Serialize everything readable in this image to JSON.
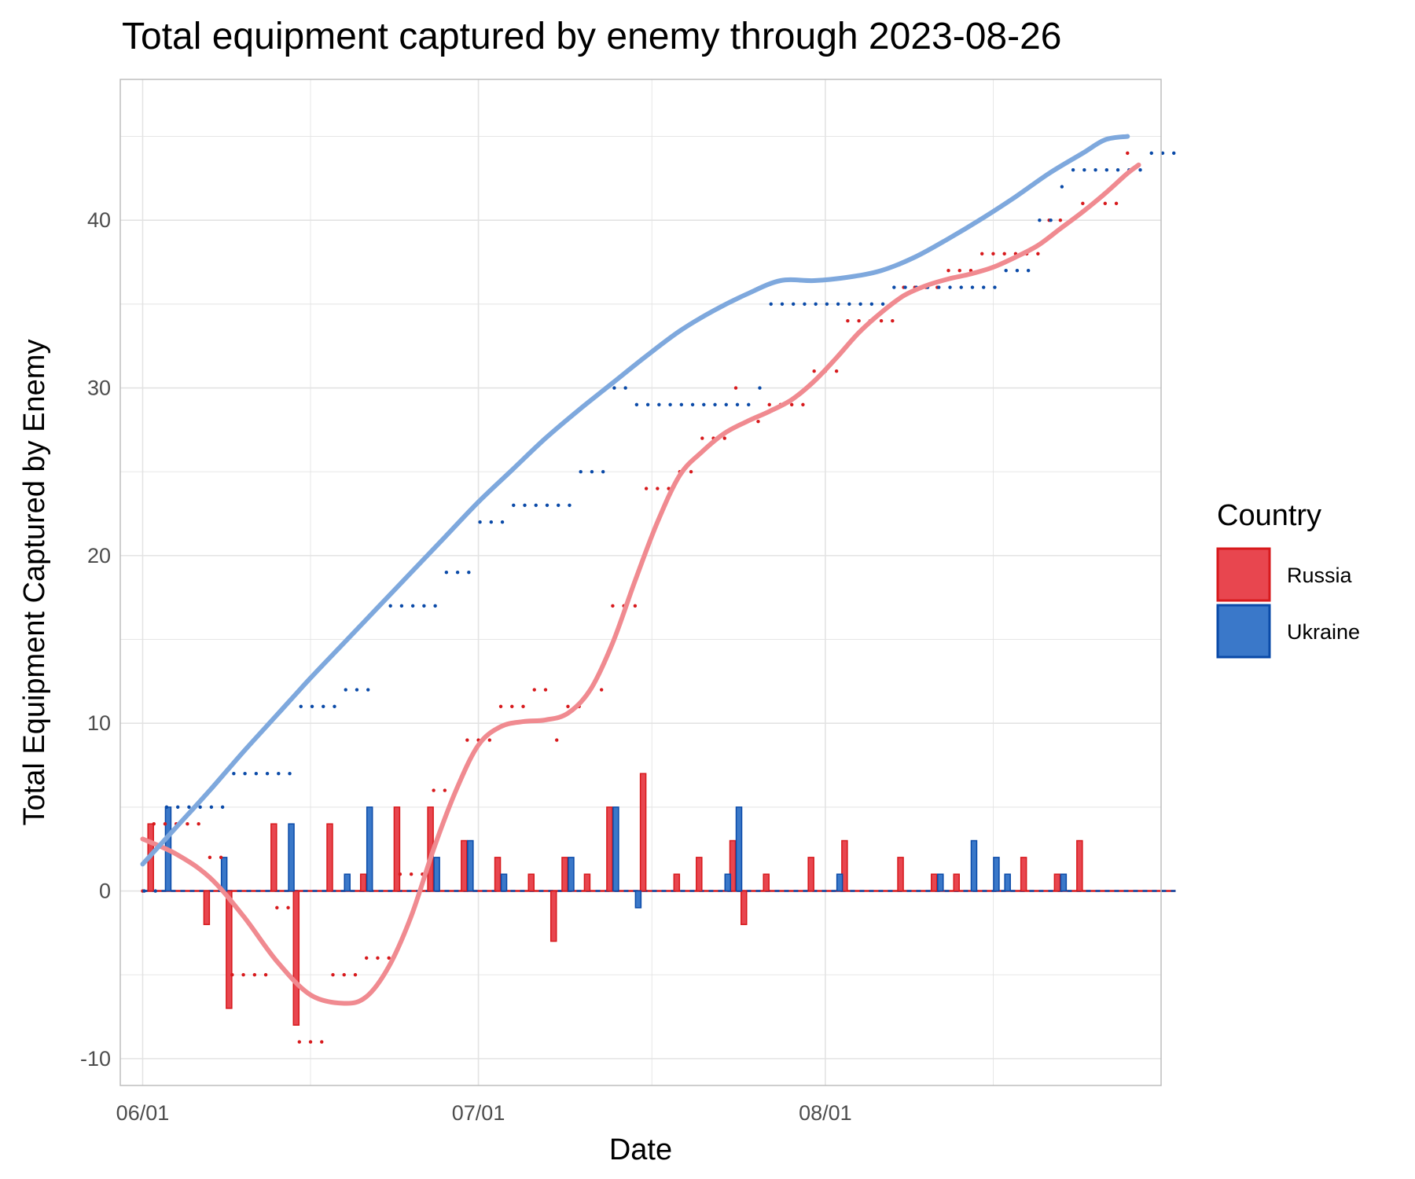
{
  "chart_data": {
    "type": "bar+line",
    "title": "Total equipment captured by enemy through 2023-08-26",
    "xlabel": "Date",
    "ylabel": "Total Equipment Captured by Enemy",
    "x_range": [
      "2023-05-30",
      "2023-08-31"
    ],
    "ylim": [
      -11.6,
      48.4
    ],
    "y_ticks": [
      -10,
      0,
      10,
      20,
      30,
      40
    ],
    "x_ticks": [
      {
        "date": "2023-06-01",
        "label": "06/01"
      },
      {
        "date": "2023-07-01",
        "label": "07/01"
      },
      {
        "date": "2023-08-01",
        "label": "08/01"
      }
    ],
    "grid": true,
    "legend": {
      "title": "Country",
      "position": "right"
    },
    "colors": {
      "Russia": "#e8464f",
      "Ukraine": "#3a78c9",
      "Russia_edge": "#d7191c",
      "Ukraine_edge": "#0a4aa8",
      "Russia_smooth": "#f08a90",
      "Ukraine_smooth": "#7ea8dd"
    },
    "series": [
      {
        "name": "Russia",
        "daily": [
          {
            "date": "2023-06-02",
            "value": 4
          },
          {
            "date": "2023-06-07",
            "value": -2
          },
          {
            "date": "2023-06-09",
            "value": -7
          },
          {
            "date": "2023-06-13",
            "value": 4
          },
          {
            "date": "2023-06-15",
            "value": -8
          },
          {
            "date": "2023-06-18",
            "value": 4
          },
          {
            "date": "2023-06-21",
            "value": 1
          },
          {
            "date": "2023-06-24",
            "value": 5
          },
          {
            "date": "2023-06-27",
            "value": 5
          },
          {
            "date": "2023-06-30",
            "value": 3
          },
          {
            "date": "2023-07-03",
            "value": 2
          },
          {
            "date": "2023-07-06",
            "value": 1
          },
          {
            "date": "2023-07-08",
            "value": -3
          },
          {
            "date": "2023-07-09",
            "value": 2
          },
          {
            "date": "2023-07-11",
            "value": 1
          },
          {
            "date": "2023-07-13",
            "value": 5
          },
          {
            "date": "2023-07-16",
            "value": 7
          },
          {
            "date": "2023-07-19",
            "value": 1
          },
          {
            "date": "2023-07-21",
            "value": 2
          },
          {
            "date": "2023-07-24",
            "value": 3
          },
          {
            "date": "2023-07-25",
            "value": -2
          },
          {
            "date": "2023-07-27",
            "value": 1
          },
          {
            "date": "2023-07-31",
            "value": 2
          },
          {
            "date": "2023-08-03",
            "value": 3
          },
          {
            "date": "2023-08-08",
            "value": 2
          },
          {
            "date": "2023-08-11",
            "value": 1
          },
          {
            "date": "2023-08-13",
            "value": 1
          },
          {
            "date": "2023-08-19",
            "value": 2
          },
          {
            "date": "2023-08-22",
            "value": 1
          },
          {
            "date": "2023-08-24",
            "value": 3
          }
        ],
        "cumulative": [
          0,
          4,
          4,
          4,
          4,
          4,
          2,
          2,
          -5,
          -5,
          -5,
          -5,
          -1,
          -1,
          -9,
          -9,
          -9,
          -5,
          -5,
          -5,
          -4,
          -4,
          -4,
          1,
          1,
          1,
          6,
          6,
          6,
          9,
          9,
          9,
          11,
          11,
          11,
          12,
          12,
          9,
          11,
          11,
          12,
          12,
          17,
          17,
          17,
          24,
          24,
          24,
          25,
          25,
          27,
          27,
          27,
          30,
          28,
          28,
          29,
          29,
          29,
          29,
          31,
          31,
          31,
          34,
          34,
          34,
          34,
          34,
          36,
          36,
          36,
          36,
          37,
          37,
          37,
          38,
          38,
          38,
          38,
          38,
          38,
          40,
          40,
          40,
          41,
          41,
          41,
          41,
          44
        ],
        "smooth": [
          [
            0,
            3.1
          ],
          [
            3,
            2.2
          ],
          [
            6,
            0.8
          ],
          [
            9,
            -1.5
          ],
          [
            12,
            -4.2
          ],
          [
            15,
            -6.2
          ],
          [
            18,
            -6.7
          ],
          [
            20,
            -6.3
          ],
          [
            22,
            -4.5
          ],
          [
            24,
            -1.5
          ],
          [
            26,
            2.5
          ],
          [
            28,
            6
          ],
          [
            30,
            8.7
          ],
          [
            32,
            9.8
          ],
          [
            34,
            10.1
          ],
          [
            36,
            10.2
          ],
          [
            38,
            10.6
          ],
          [
            40,
            12
          ],
          [
            42,
            14.8
          ],
          [
            44,
            18.5
          ],
          [
            46,
            22
          ],
          [
            48,
            24.8
          ],
          [
            50,
            26.2
          ],
          [
            52,
            27.3
          ],
          [
            54,
            28
          ],
          [
            56,
            28.6
          ],
          [
            58,
            29.3
          ],
          [
            60,
            30.4
          ],
          [
            62,
            31.8
          ],
          [
            64,
            33.3
          ],
          [
            66,
            34.5
          ],
          [
            68,
            35.5
          ],
          [
            70,
            36.1
          ],
          [
            72,
            36.5
          ],
          [
            74,
            36.8
          ],
          [
            76,
            37.2
          ],
          [
            78,
            37.8
          ],
          [
            80,
            38.5
          ],
          [
            82,
            39.5
          ],
          [
            84,
            40.5
          ],
          [
            86,
            41.6
          ],
          [
            88,
            42.8
          ],
          [
            89,
            43.3
          ]
        ]
      },
      {
        "name": "Ukraine",
        "daily": [
          {
            "date": "2023-06-03",
            "value": 5
          },
          {
            "date": "2023-06-08",
            "value": 2
          },
          {
            "date": "2023-06-14",
            "value": 4
          },
          {
            "date": "2023-06-19",
            "value": 1
          },
          {
            "date": "2023-06-21",
            "value": 5
          },
          {
            "date": "2023-06-27",
            "value": 2
          },
          {
            "date": "2023-06-30",
            "value": 3
          },
          {
            "date": "2023-07-03",
            "value": 1
          },
          {
            "date": "2023-07-09",
            "value": 2
          },
          {
            "date": "2023-07-13",
            "value": 5
          },
          {
            "date": "2023-07-15",
            "value": -1
          },
          {
            "date": "2023-07-23",
            "value": 1
          },
          {
            "date": "2023-07-24",
            "value": 5
          },
          {
            "date": "2023-08-02",
            "value": 1
          },
          {
            "date": "2023-08-11",
            "value": 1
          },
          {
            "date": "2023-08-14",
            "value": 3
          },
          {
            "date": "2023-08-16",
            "value": 2
          },
          {
            "date": "2023-08-17",
            "value": 1
          },
          {
            "date": "2023-08-22",
            "value": 1
          }
        ],
        "cumulative": [
          0,
          0,
          5,
          5,
          5,
          5,
          5,
          5,
          7,
          7,
          7,
          7,
          7,
          7,
          11,
          11,
          11,
          11,
          12,
          12,
          12,
          17,
          17,
          17,
          17,
          17,
          17,
          19,
          19,
          19,
          22,
          22,
          22,
          23,
          23,
          23,
          23,
          23,
          23,
          25,
          25,
          25,
          30,
          30,
          29,
          29,
          29,
          29,
          29,
          29,
          29,
          29,
          29,
          29,
          29,
          30,
          35,
          35,
          35,
          35,
          35,
          35,
          35,
          35,
          35,
          35,
          35,
          36,
          36,
          36,
          36,
          36,
          36,
          36,
          36,
          36,
          36,
          37,
          37,
          37,
          40,
          40,
          42,
          43,
          43,
          43,
          43,
          43,
          43,
          43,
          44,
          44,
          44
        ],
        "smooth": [
          [
            0,
            1.6
          ],
          [
            3,
            3.8
          ],
          [
            6,
            6
          ],
          [
            9,
            8.3
          ],
          [
            12,
            10.5
          ],
          [
            15,
            12.7
          ],
          [
            18,
            14.8
          ],
          [
            21,
            16.9
          ],
          [
            24,
            19
          ],
          [
            27,
            21.1
          ],
          [
            30,
            23.2
          ],
          [
            33,
            25.1
          ],
          [
            36,
            27
          ],
          [
            39,
            28.7
          ],
          [
            42,
            30.3
          ],
          [
            45,
            31.9
          ],
          [
            48,
            33.4
          ],
          [
            51,
            34.6
          ],
          [
            54,
            35.6
          ],
          [
            57,
            36.4
          ],
          [
            60,
            36.4
          ],
          [
            63,
            36.6
          ],
          [
            66,
            37
          ],
          [
            69,
            37.8
          ],
          [
            72,
            38.9
          ],
          [
            75,
            40.1
          ],
          [
            78,
            41.4
          ],
          [
            81,
            42.8
          ],
          [
            84,
            44
          ],
          [
            86,
            44.8
          ],
          [
            88,
            45
          ]
        ]
      }
    ]
  }
}
